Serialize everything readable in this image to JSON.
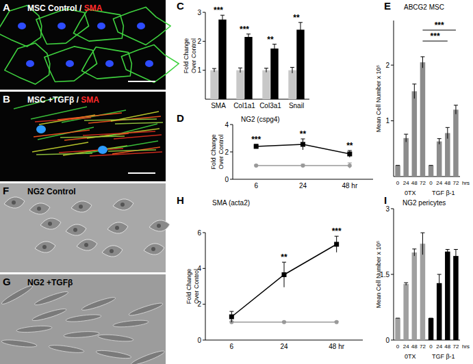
{
  "chart_data": [
    {
      "panel": "C",
      "type": "bar",
      "categories": [
        "SMA",
        "Col1a1",
        "Col3a1",
        "Snail"
      ],
      "y_label": "Fold Change Over Control",
      "ylim": [
        0,
        3
      ],
      "yticks": [
        1,
        2,
        3
      ],
      "series": [
        {
          "color": "#c8c8c8",
          "values": [
            1,
            1,
            1,
            1
          ],
          "errors": [
            0.06,
            0.08,
            0.07,
            0.1
          ]
        },
        {
          "color": "#000000",
          "values": [
            2.75,
            2.15,
            1.75,
            2.4
          ],
          "errors": [
            0.15,
            0.1,
            0.15,
            0.25
          ]
        }
      ],
      "annotations": [
        "***",
        "***",
        "**",
        "**"
      ]
    },
    {
      "panel": "D",
      "type": "line",
      "title": "NG2 (cspg4)",
      "categories": [
        "6",
        "24",
        "48 hr"
      ],
      "y_label": "Fold Change Over Control",
      "ylim": [
        0,
        4
      ],
      "yticks": [
        0,
        2,
        4
      ],
      "series": [
        {
          "color": "#000000",
          "marker": "square",
          "values": [
            2.4,
            2.55,
            1.85
          ],
          "errors": [
            0.15,
            0.4,
            0.25
          ]
        },
        {
          "color": "#999999",
          "marker": "circle",
          "values": [
            1,
            1,
            1
          ],
          "errors": [
            0.05,
            0.1,
            0.2
          ]
        }
      ],
      "annotations": [
        "***",
        "**",
        "**"
      ]
    },
    {
      "panel": "E",
      "type": "bar",
      "title": "ABCG2 MSC",
      "categories": [
        "0",
        "24",
        "48",
        "72",
        "0",
        "24",
        "48",
        "72"
      ],
      "groups": [
        "0TX",
        "TGF β-1"
      ],
      "x_label": "hrs",
      "y_label": "Mean Cell Number x 10⁵",
      "ylim": [
        0,
        2.8
      ],
      "yticks": [
        1,
        2
      ],
      "color": "#8c8c8c",
      "values": [
        0.2,
        0.69,
        1.53,
        2.05,
        0.2,
        0.63,
        0.78,
        1.2
      ],
      "errors": [
        0,
        0.07,
        0.13,
        0.1,
        0,
        0.05,
        0.1,
        0.08
      ],
      "comparisons": [
        {
          "from": 3,
          "to": 7,
          "label": "***"
        },
        {
          "from": 3,
          "to": 6,
          "label": "***"
        }
      ]
    },
    {
      "panel": "H",
      "type": "line",
      "title": "SMA (acta2)",
      "categories": [
        "6",
        "24",
        "48 hr"
      ],
      "y_label": "Fold Change Over Control",
      "ylim": [
        0,
        6
      ],
      "yticks": [
        0,
        2,
        4,
        6
      ],
      "series": [
        {
          "color": "#000000",
          "marker": "square",
          "values": [
            1.3,
            3.65,
            5.35
          ],
          "errors": [
            0.3,
            0.7,
            0.45
          ]
        },
        {
          "color": "#999999",
          "marker": "circle",
          "values": [
            1,
            1,
            1
          ],
          "errors": [
            0.05,
            0.05,
            0.05
          ]
        }
      ],
      "annotations": [
        null,
        "**",
        "***"
      ]
    },
    {
      "panel": "I",
      "type": "bar",
      "title": "NG2 pericytes",
      "categories": [
        "0",
        "24",
        "48",
        "72",
        "0",
        "24",
        "48",
        "72"
      ],
      "groups": [
        "0TX",
        "TGF β-1"
      ],
      "x_label": "hrs",
      "y_label": "Mean Cell Number x 10⁵",
      "ylim": [
        0,
        3
      ],
      "yticks": [
        0,
        1.5,
        3
      ],
      "colors": [
        "#a0a0a0",
        "#a0a0a0",
        "#a0a0a0",
        "#a0a0a0",
        "#000000",
        "#000000",
        "#000000",
        "#000000"
      ],
      "values": [
        0.5,
        1.28,
        2.0,
        2.2,
        0.5,
        1.3,
        2.02,
        1.92
      ],
      "errors": [
        0,
        0.03,
        0.08,
        0.25,
        0,
        0.2,
        0.05,
        0.15
      ]
    }
  ],
  "images": [
    {
      "panel": "A",
      "label": "MSC Control / ",
      "highlight": "SMA",
      "highlight_color": "#ff2a2a"
    },
    {
      "panel": "B",
      "label": "MSC +TGFβ / ",
      "highlight": "SMA",
      "highlight_color": "#ff2a2a"
    },
    {
      "panel": "F",
      "label": "NG2 Control"
    },
    {
      "panel": "G",
      "label": "NG2 +TGFβ"
    }
  ]
}
